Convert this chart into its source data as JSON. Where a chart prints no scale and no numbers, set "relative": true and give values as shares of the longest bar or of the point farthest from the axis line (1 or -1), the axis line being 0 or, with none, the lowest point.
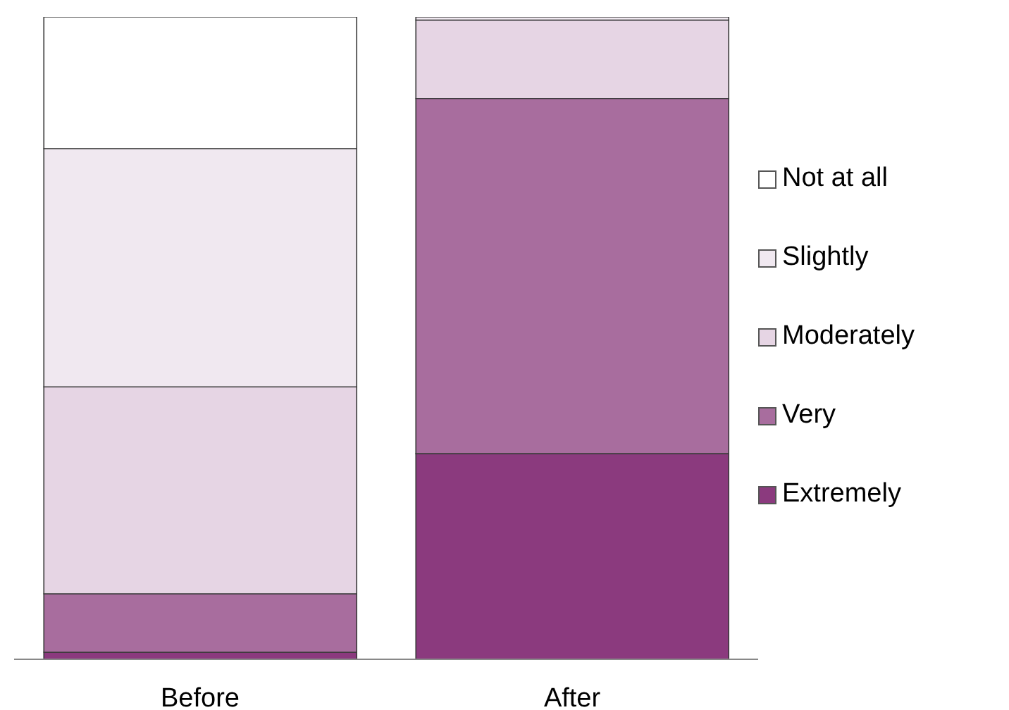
{
  "chart_data": {
    "type": "bar",
    "stacked": true,
    "relative": true,
    "categories": [
      "Before",
      "After"
    ],
    "series": [
      {
        "name": "Extremely",
        "color": "#8b3a7e",
        "values": [
          0.011,
          0.32
        ]
      },
      {
        "name": "Very",
        "color": "#a86d9e",
        "values": [
          0.091,
          0.553
        ]
      },
      {
        "name": "Moderately",
        "color": "#e6d5e4",
        "values": [
          0.322,
          0.122
        ]
      },
      {
        "name": "Slightly",
        "color": "#f0e8f0",
        "values": [
          0.371,
          0.005
        ]
      },
      {
        "name": "Not at all",
        "color": "#ffffff",
        "values": [
          0.205,
          0
        ]
      }
    ],
    "legend": "right",
    "grid": false
  }
}
